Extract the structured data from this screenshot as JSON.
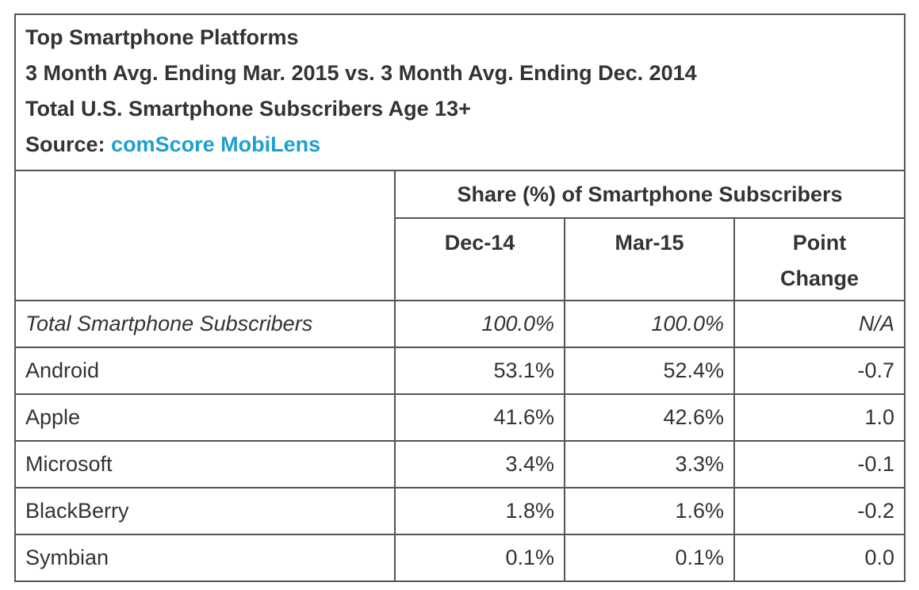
{
  "header": {
    "title": "Top Smartphone Platforms",
    "subtitle": "3 Month Avg. Ending Mar. 2015 vs. 3 Month Avg. Ending Dec. 2014",
    "population": "Total U.S. Smartphone Subscribers Age 13+",
    "source_label": "Source:",
    "source_name": "comScore MobiLens",
    "link_color": "#1f9fcf"
  },
  "columns": {
    "group_header": "Share (%) of Smartphone Subscribers",
    "col1": "Dec-14",
    "col2": "Mar-15",
    "col3_line1": "Point",
    "col3_line2": "Change"
  },
  "rows": [
    {
      "platform": "Total Smartphone Subscribers",
      "dec14": "100.0%",
      "mar15": "100.0%",
      "change": "N/A"
    },
    {
      "platform": "Android",
      "dec14": "53.1%",
      "mar15": "52.4%",
      "change": "-0.7"
    },
    {
      "platform": "Apple",
      "dec14": "41.6%",
      "mar15": "42.6%",
      "change": "1.0"
    },
    {
      "platform": "Microsoft",
      "dec14": "3.4%",
      "mar15": "3.3%",
      "change": "-0.1"
    },
    {
      "platform": "BlackBerry",
      "dec14": "1.8%",
      "mar15": "1.6%",
      "change": "-0.2"
    },
    {
      "platform": "Symbian",
      "dec14": "0.1%",
      "mar15": "0.1%",
      "change": "0.0"
    }
  ],
  "chart_data": {
    "type": "table",
    "title": "Top Smartphone Platforms",
    "columns": [
      "Dec-14",
      "Mar-15",
      "Point Change"
    ],
    "categories": [
      "Total Smartphone Subscribers",
      "Android",
      "Apple",
      "Microsoft",
      "BlackBerry",
      "Symbian"
    ],
    "series": [
      {
        "name": "Dec-14",
        "values": [
          100.0,
          53.1,
          41.6,
          3.4,
          1.8,
          0.1
        ]
      },
      {
        "name": "Mar-15",
        "values": [
          100.0,
          52.4,
          42.6,
          3.3,
          1.6,
          0.1
        ]
      },
      {
        "name": "Point Change",
        "values": [
          null,
          -0.7,
          1.0,
          -0.1,
          -0.2,
          0.0
        ]
      }
    ]
  }
}
